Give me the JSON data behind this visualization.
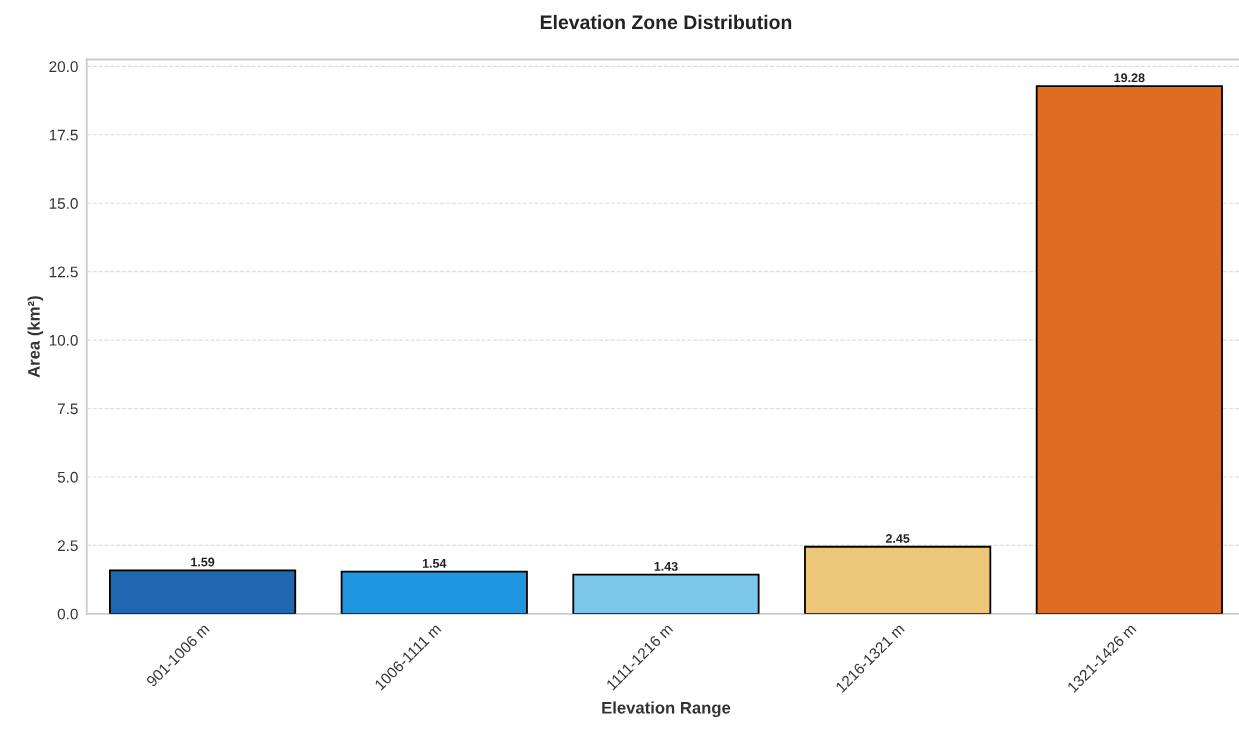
{
  "chart_data": {
    "type": "bar",
    "title": "Elevation Zone Distribution",
    "xlabel": "Elevation Range",
    "ylabel": "Area (km²)",
    "categories": [
      "901-1006 m",
      "1006-1111 m",
      "1111-1216 m",
      "1216-1321 m",
      "1321-1426 m"
    ],
    "values": [
      1.59,
      1.54,
      1.43,
      2.45,
      19.28
    ],
    "colors": [
      "#1f67b1",
      "#2196e0",
      "#7cc7ec",
      "#ecc77a",
      "#e06c22"
    ],
    "ylim": [
      0,
      20.25
    ],
    "yticks": [
      {
        "value": 0,
        "label": "0.0"
      },
      2.5,
      {
        "value": 5,
        "label": "5.0"
      },
      7.5,
      {
        "value": 10,
        "label": "10.0"
      },
      12.5,
      {
        "value": 15,
        "label": "15.0"
      },
      17.5,
      {
        "value": 20,
        "label": "20.0"
      }
    ],
    "grid": "y",
    "data_labels": true
  }
}
